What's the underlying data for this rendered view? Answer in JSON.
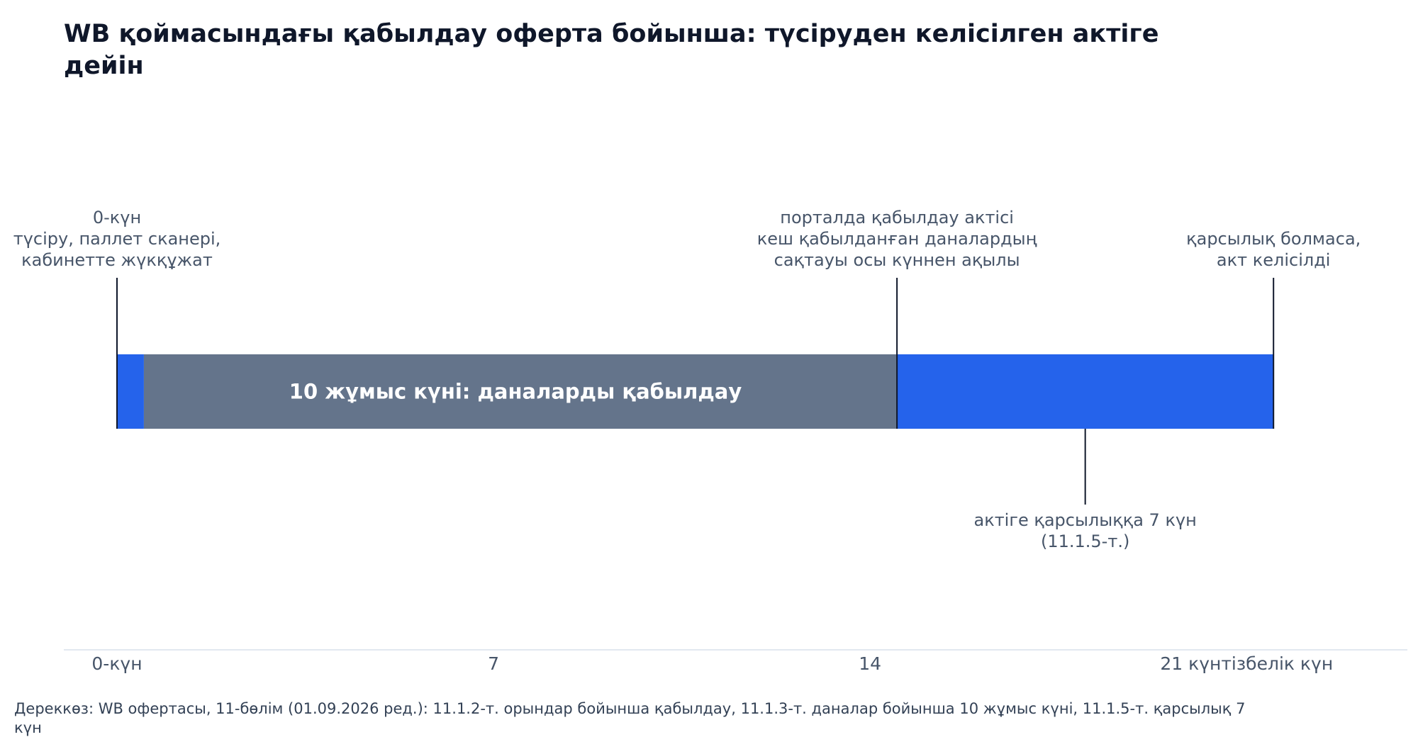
{
  "chart_data": {
    "type": "timeline",
    "title_lines": [
      "WB қоймасындағы қабылдау оферта бойынша: түсіруден келісілген актіге",
      "дейін"
    ],
    "xlim": [
      0,
      23
    ],
    "ticks": [
      {
        "value": 0,
        "label": "0-күн"
      },
      {
        "value": 7,
        "label": "7"
      },
      {
        "value": 14,
        "label": "14"
      },
      {
        "value": 21,
        "label": "21 күнтізбелік күн"
      }
    ],
    "segments": [
      {
        "start": 0,
        "end": 0.5,
        "color": "#2563eb",
        "label": ""
      },
      {
        "start": 0.5,
        "end": 14.5,
        "color": "#64748b",
        "label": "10 жұмыс күні: даналарды қабылдау"
      },
      {
        "start": 14.5,
        "end": 21.5,
        "color": "#2563eb",
        "label": ""
      }
    ],
    "annotations": [
      {
        "value": 0,
        "side": "above",
        "lines": [
          "0-күн",
          "түсіру, паллет сканері,",
          "кабинетте жүкқұжат"
        ]
      },
      {
        "value": 14.5,
        "side": "above",
        "lines": [
          "порталда қабылдау актісі",
          "кеш қабылданған даналардың",
          "сақтауы осы күннен ақылы"
        ]
      },
      {
        "value": 21.5,
        "side": "above",
        "lines": [
          "қарсылық болмаса,",
          "акт келісілді"
        ]
      },
      {
        "value": 18,
        "side": "below",
        "lines": [
          "актіге қарсылыққа 7 күн",
          "(11.1.5-т.)"
        ]
      }
    ],
    "colors": {
      "primary": "#2563eb",
      "secondary": "#64748b",
      "axis": "#e2e8f0",
      "marker": "#0f172a"
    },
    "source_lines": [
      "Дереккөз: WB офертасы, 11-бөлім (01.09.2026 ред.): 11.1.2-т. орындар бойынша қабылдау, 11.1.3-т. даналар бойынша 10 жұмыс күні, 11.1.5-т. қарсылық 7",
      "күн"
    ]
  }
}
